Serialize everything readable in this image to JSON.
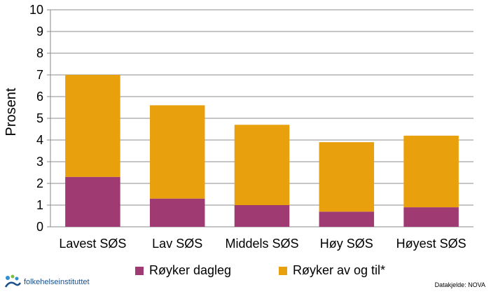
{
  "chart_data": {
    "type": "bar",
    "stacked": true,
    "categories": [
      "Lavest SØS",
      "Lav SØS",
      "Middels SØS",
      "Høy SØS",
      "Høyest SØS"
    ],
    "series": [
      {
        "name": "Røyker dagleg",
        "color": "#a03a72",
        "values": [
          2.3,
          1.3,
          1.0,
          0.7,
          0.9
        ]
      },
      {
        "name": "Røyker av og til*",
        "color": "#e8a00c",
        "values": [
          4.7,
          4.3,
          3.7,
          3.2,
          3.3
        ]
      }
    ],
    "ylabel": "Prosent",
    "ylim": [
      0,
      10
    ],
    "yticks": [
      0,
      1,
      2,
      3,
      4,
      5,
      6,
      7,
      8,
      9,
      10
    ],
    "grid": true,
    "legend_position": "bottom"
  },
  "logo": {
    "text": "folkehelseinstituttet",
    "icon": "fhi-logo-icon"
  },
  "source": "Datakjelde: NOVA"
}
